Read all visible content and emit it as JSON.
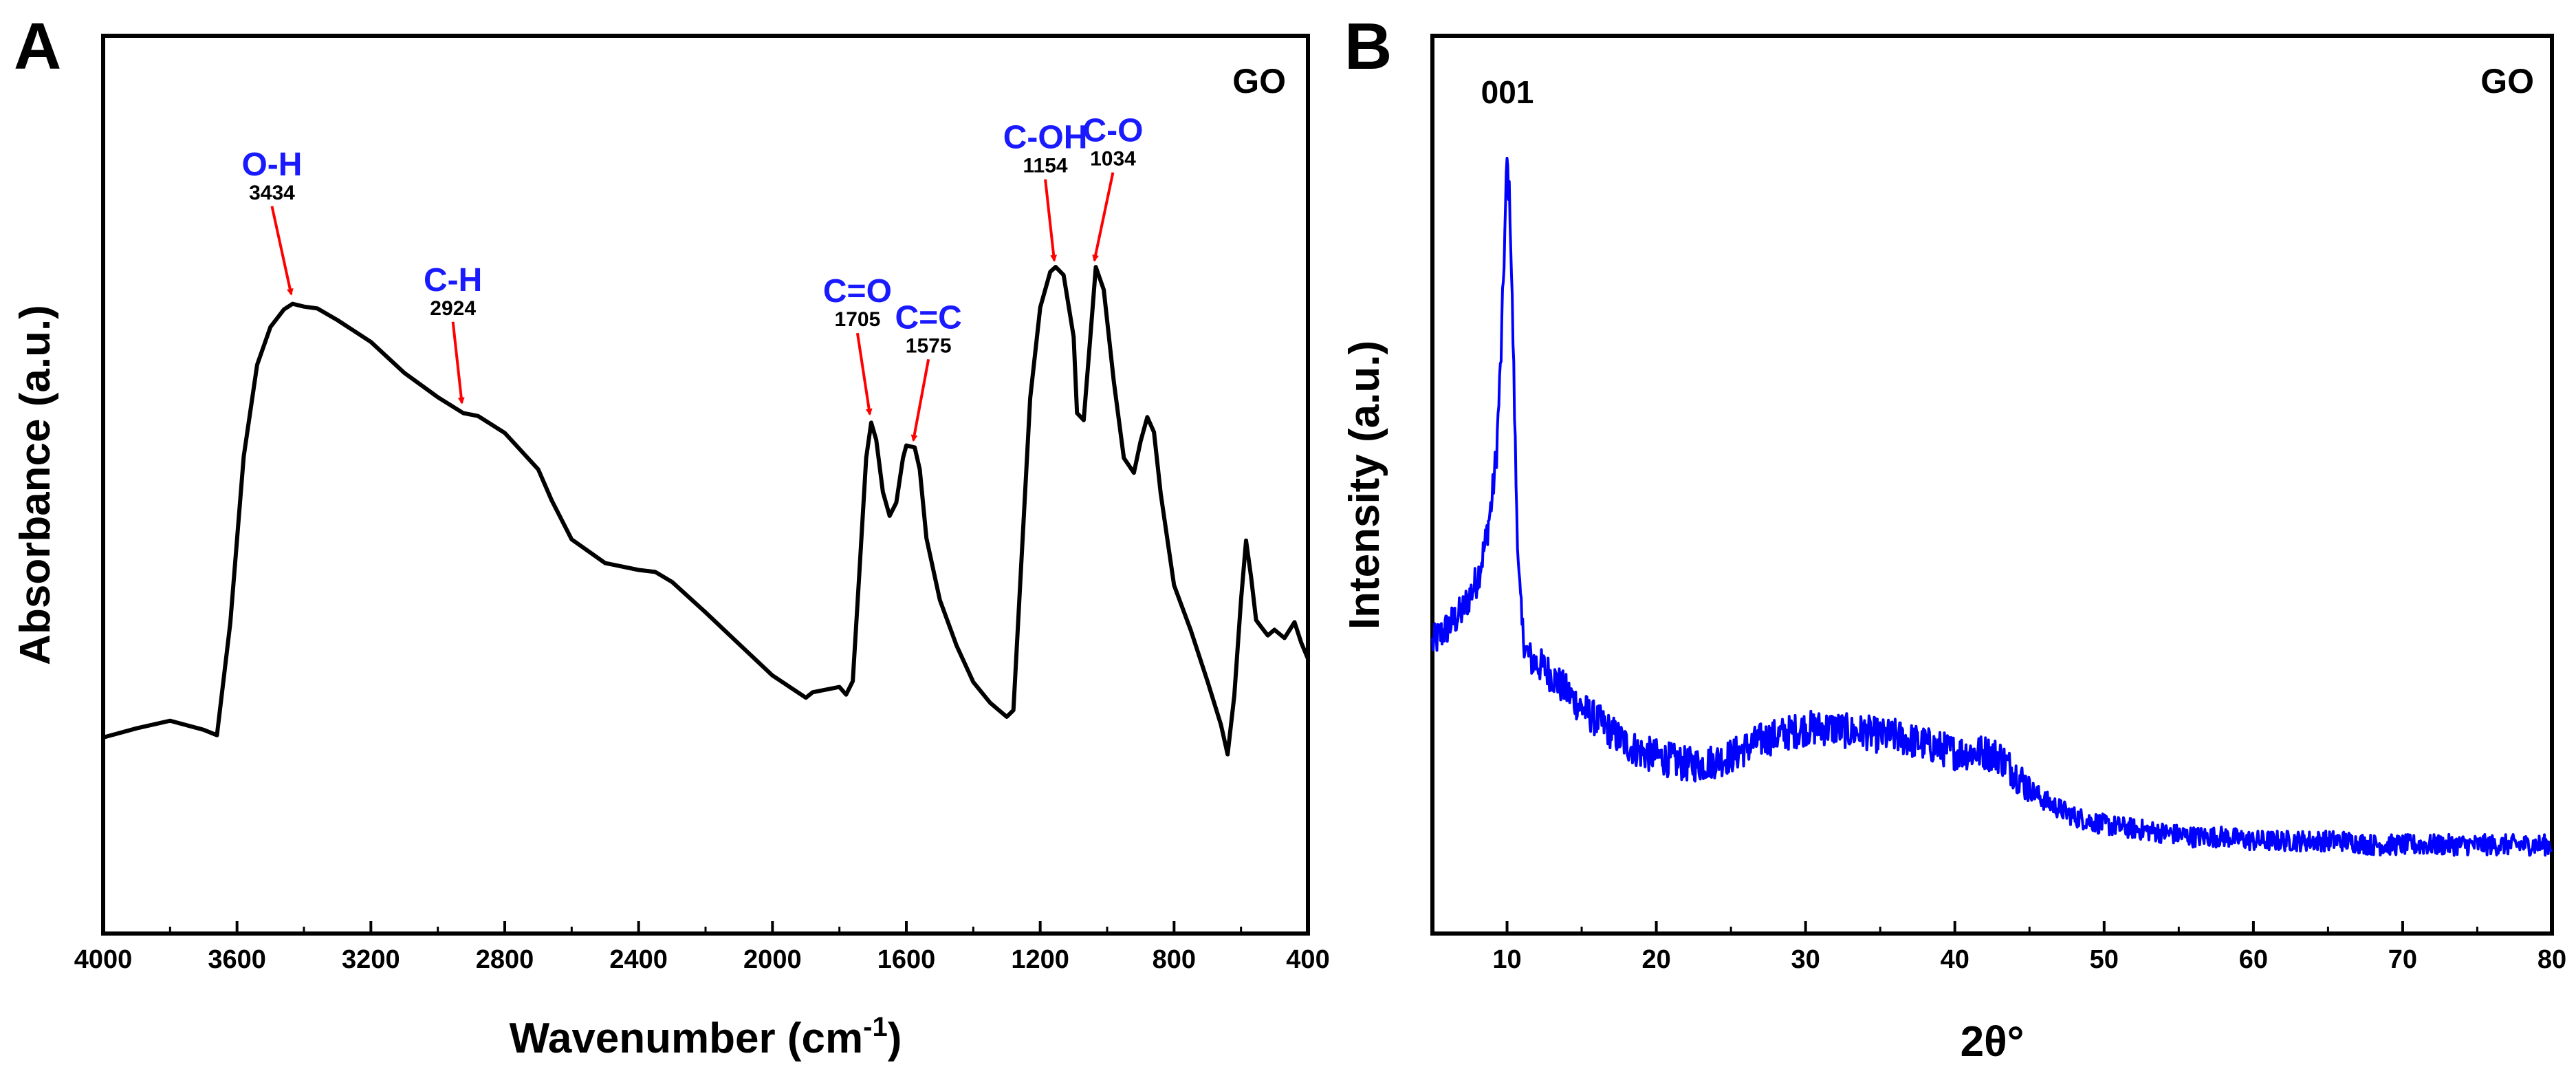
{
  "panel_a": {
    "panel_letter": "A",
    "sample_label": "GO",
    "xlabel_main": "Wavenumber (cm",
    "xlabel_sup": "-1",
    "xlabel_tail": ")",
    "ylabel": "Absorbance (a.u.)",
    "xticks": [
      "4000",
      "3600",
      "3200",
      "2800",
      "2400",
      "2000",
      "1600",
      "1200",
      "800",
      "400"
    ],
    "peaks": [
      {
        "label": "O-H",
        "value": "3434"
      },
      {
        "label": "C-H",
        "value": "2924"
      },
      {
        "label": "C=O",
        "value": "1705"
      },
      {
        "label": "C=C",
        "value": "1575"
      },
      {
        "label": "C-OH",
        "value": "1154"
      },
      {
        "label": "C-O",
        "value": "1034"
      }
    ]
  },
  "panel_b": {
    "panel_letter": "B",
    "sample_label": "GO",
    "peak_label": "001",
    "xlabel": "2θ°",
    "ylabel": "Intensity (a.u.)",
    "xticks": [
      "10",
      "20",
      "30",
      "40",
      "50",
      "60",
      "70",
      "80"
    ]
  },
  "colors": {
    "ftir_line": "#000000",
    "xrd_line": "#0000ff",
    "peak_label": "#1a1aff",
    "arrow": "#ff0000"
  },
  "chart_data": [
    {
      "type": "line",
      "title": "",
      "xlabel": "Wavenumber (cm-1)",
      "ylabel": "Absorbance (a.u.)",
      "xlim": [
        4000,
        400
      ],
      "ylim": [
        0,
        100
      ],
      "x_reversed": true,
      "y_ticks_shown": false,
      "grid": false,
      "series": [
        {
          "x": [
            4000,
            3900,
            3800,
            3700,
            3660,
            3620,
            3580,
            3540,
            3500,
            3460,
            3434,
            3400,
            3360,
            3300,
            3200,
            3100,
            3000,
            2924,
            2880,
            2800,
            2700,
            2660,
            2600,
            2500,
            2400,
            2350,
            2300,
            2200,
            2100,
            2000,
            1900,
            1880,
            1800,
            1780,
            1760,
            1740,
            1720,
            1705,
            1690,
            1670,
            1650,
            1630,
            1610,
            1600,
            1575,
            1560,
            1540,
            1500,
            1450,
            1400,
            1350,
            1300,
            1280,
            1260,
            1230,
            1200,
            1170,
            1154,
            1130,
            1100,
            1090,
            1070,
            1050,
            1034,
            1010,
            980,
            950,
            920,
            900,
            880,
            860,
            840,
            800,
            750,
            700,
            660,
            640,
            620,
            600,
            585,
            570,
            555,
            540,
            520,
            500,
            470,
            440,
            420,
            400
          ],
          "y": [
            14.5,
            15.5,
            16.5,
            15.5,
            15,
            30,
            52,
            64,
            69,
            71.5,
            72.5,
            72.2,
            71.8,
            70,
            67,
            63,
            60,
            58,
            57.5,
            55,
            50,
            46,
            41,
            38,
            37,
            36.5,
            35,
            31,
            27,
            23,
            20,
            20.5,
            21,
            20,
            22,
            37,
            52,
            56.5,
            54,
            47,
            44,
            46,
            52,
            53.5,
            53,
            50,
            41,
            33,
            27,
            22,
            19,
            17,
            18,
            35,
            60,
            72,
            76.5,
            77,
            76,
            68,
            58,
            57,
            68,
            77,
            74,
            62,
            52,
            50,
            54,
            57,
            55,
            47,
            35,
            29,
            22,
            16,
            12,
            20,
            33,
            41,
            36,
            30,
            29,
            28,
            29,
            28,
            30,
            27,
            25
          ]
        }
      ],
      "annotations": [
        "O-H 3434",
        "C-H 2924",
        "C=O 1705",
        "C=C 1575",
        "C-OH 1154",
        "C-O 1034"
      ]
    },
    {
      "type": "line",
      "title": "",
      "xlabel": "2θ°",
      "ylabel": "Intensity (a.u.)",
      "xlim": [
        5,
        80
      ],
      "ylim": [
        0,
        100
      ],
      "y_ticks_shown": false,
      "grid": false,
      "series": [
        {
          "x": [
            5,
            6,
            7,
            8,
            8.5,
            9,
            9.3,
            9.6,
            9.8,
            10,
            10.2,
            10.4,
            10.6,
            10.8,
            11,
            11.3,
            11.6,
            12,
            12.5,
            13,
            14,
            15,
            16,
            17,
            18,
            19,
            20,
            21,
            22,
            23,
            24,
            25,
            26,
            27,
            28,
            29,
            30,
            31,
            32,
            33,
            34,
            35,
            36,
            37,
            38,
            39,
            40,
            41,
            42,
            43,
            44,
            45,
            46,
            47,
            48,
            49,
            50,
            52,
            54,
            56,
            58,
            60,
            62,
            64,
            66,
            68,
            70,
            72,
            74,
            76,
            78,
            80
          ],
          "y": [
            32,
            34,
            36,
            40,
            44,
            50,
            56,
            68,
            80,
            92,
            86,
            70,
            52,
            40,
            34,
            31,
            30,
            29.5,
            29,
            28,
            26,
            24,
            22.5,
            21,
            19.5,
            18.5,
            18,
            17.5,
            17,
            17,
            17.5,
            18,
            19,
            20,
            20.5,
            21,
            21.5,
            21.5,
            21.5,
            21,
            21,
            20.5,
            20.5,
            20,
            19.5,
            19,
            18.5,
            18.5,
            18.5,
            18,
            16,
            14,
            12.5,
            11.5,
            10.5,
            10,
            9.5,
            9,
            8.5,
            8,
            8,
            7.5,
            7.5,
            7.5,
            7.5,
            7,
            7,
            7,
            7,
            7,
            7,
            7
          ]
        }
      ],
      "annotations": [
        "001"
      ]
    }
  ]
}
